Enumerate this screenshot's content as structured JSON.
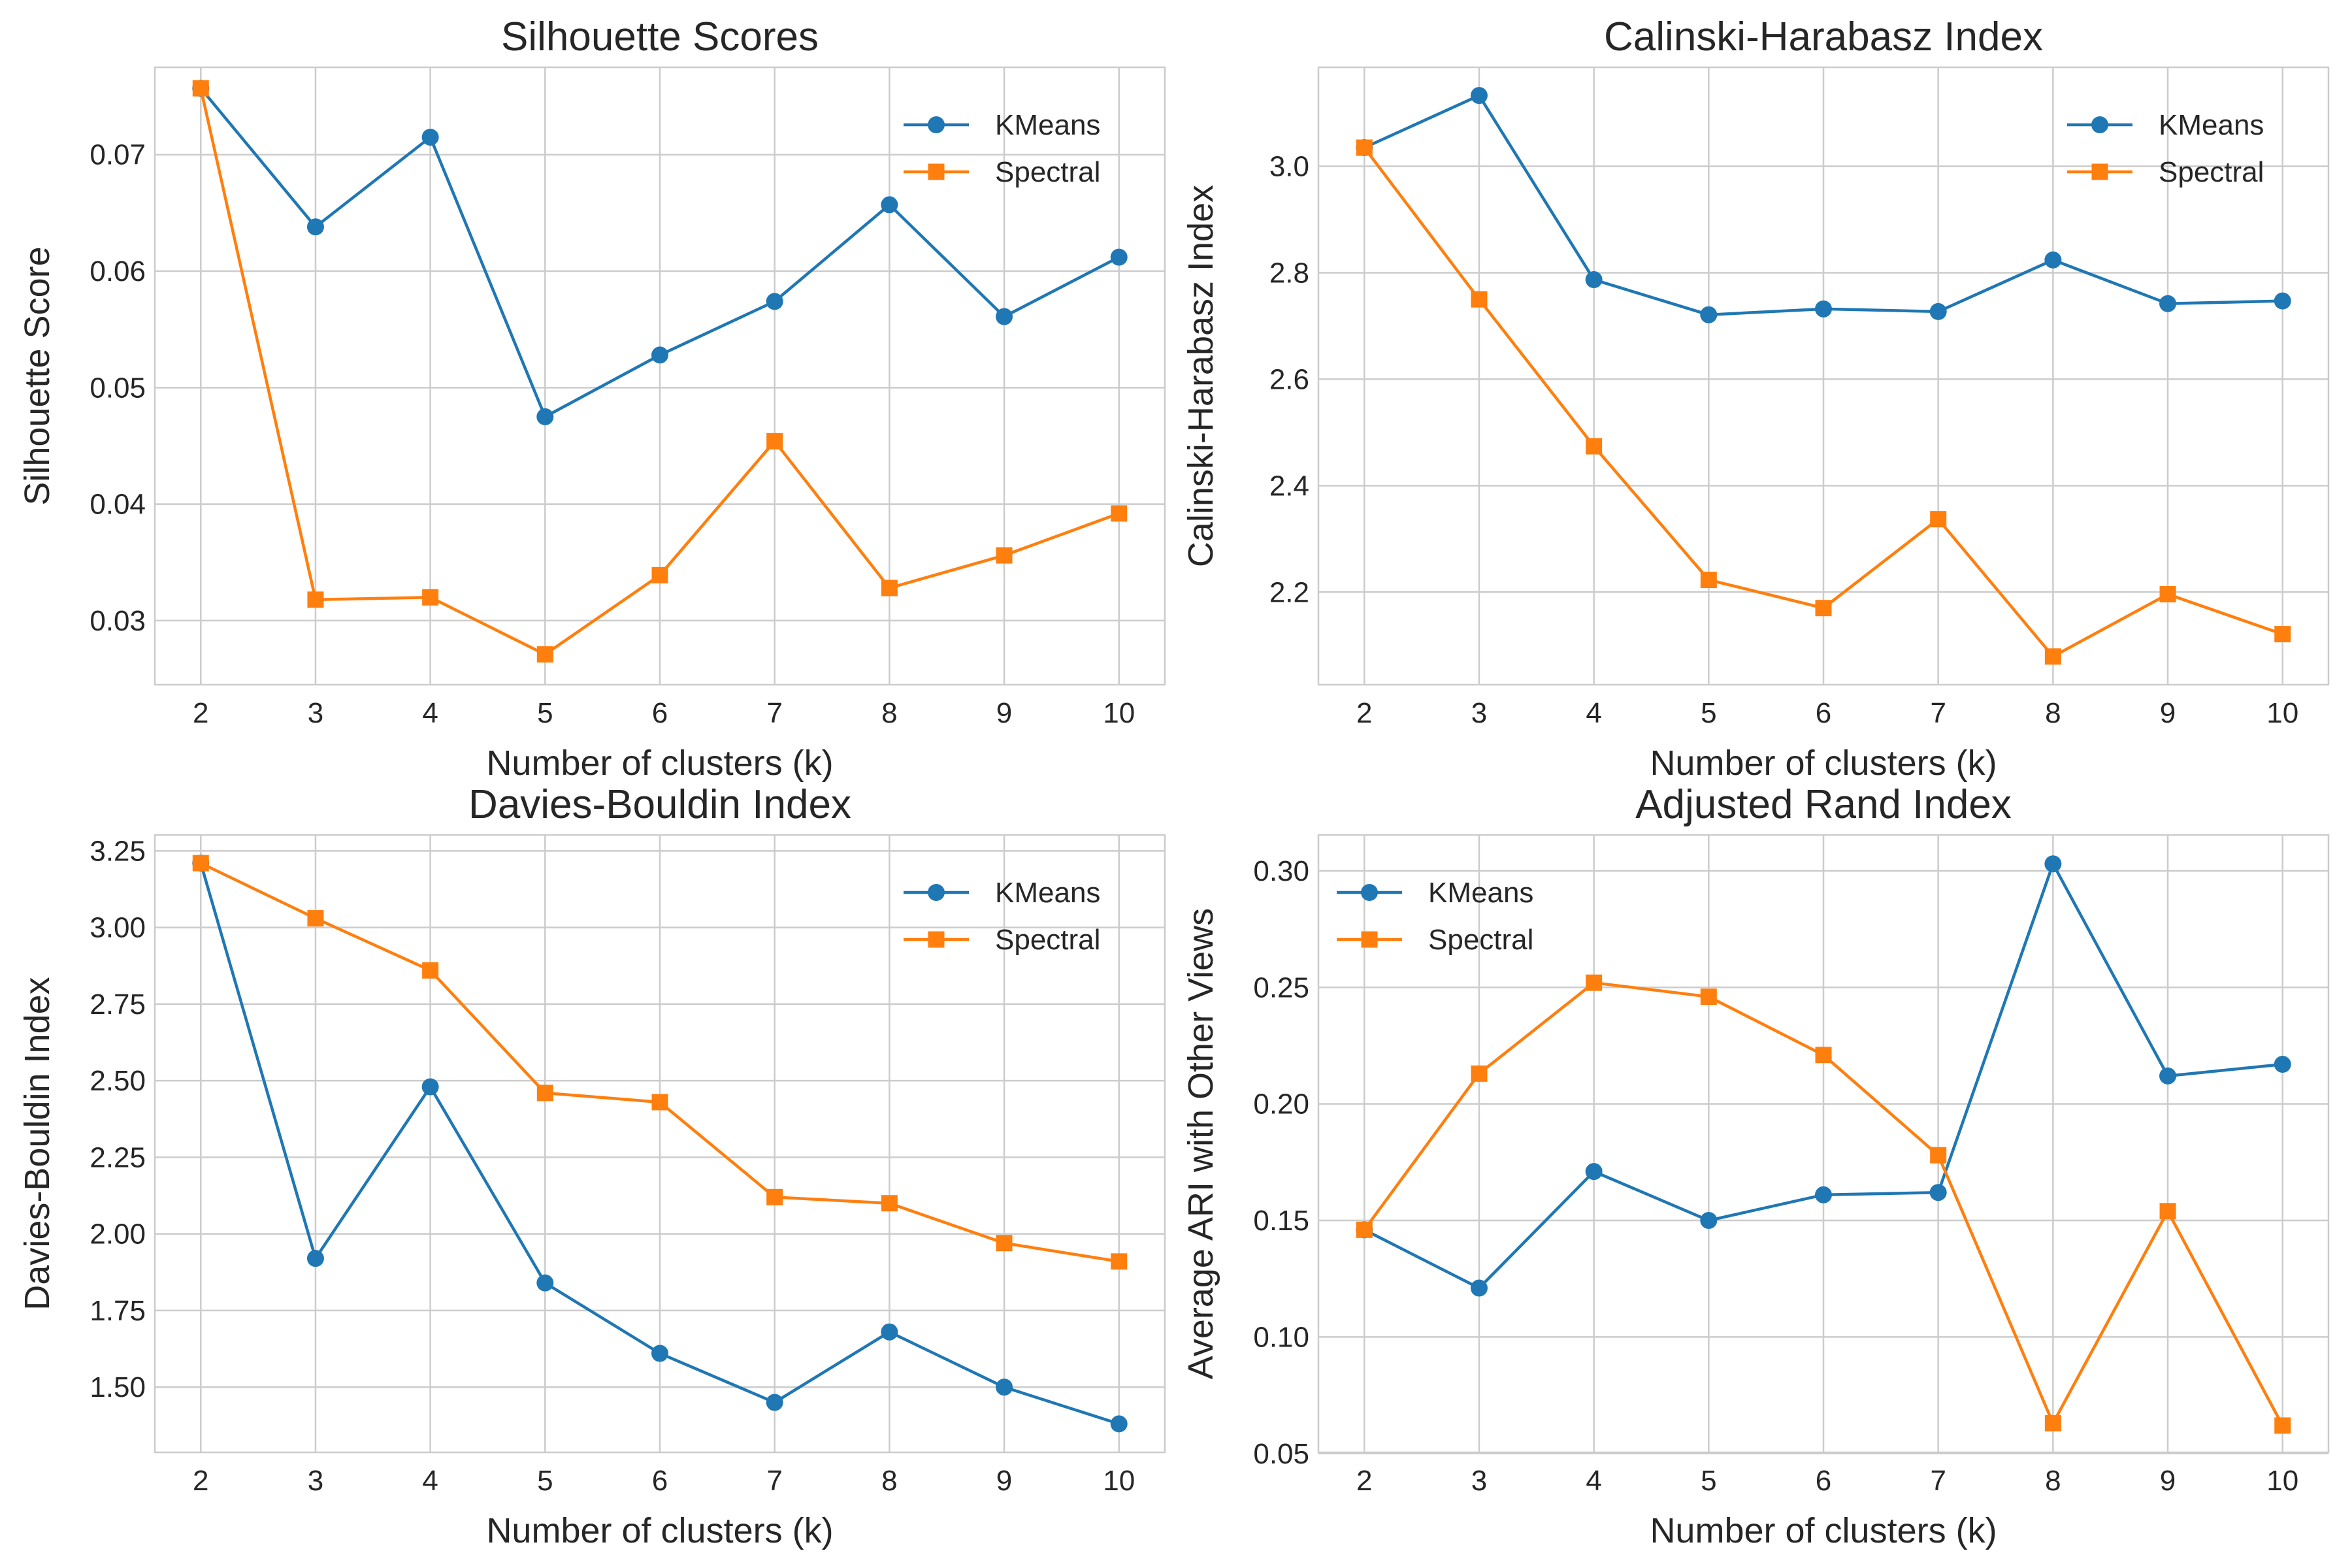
{
  "chart_data": [
    {
      "type": "line",
      "title": "Silhouette Scores",
      "xlabel": "Number of clusters (k)",
      "ylabel": "Silhouette Score",
      "x": [
        2,
        3,
        4,
        5,
        6,
        7,
        8,
        9,
        10
      ],
      "xticks": [
        "2",
        "3",
        "4",
        "5",
        "6",
        "7",
        "8",
        "9",
        "10"
      ],
      "xlim": [
        1.6,
        10.4
      ],
      "ylim": [
        0.0245,
        0.0775
      ],
      "yticks": [
        0.03,
        0.04,
        0.05,
        0.06,
        0.07
      ],
      "ytick_labels": [
        "0.03",
        "0.04",
        "0.05",
        "0.06",
        "0.07"
      ],
      "legend_position": "upper right",
      "grid": true,
      "series": [
        {
          "name": "KMeans",
          "color": "#1f77b4",
          "marker": "circle",
          "values": [
            0.0757,
            0.0638,
            0.0715,
            0.0475,
            0.0528,
            0.0574,
            0.0657,
            0.0561,
            0.0612
          ]
        },
        {
          "name": "Spectral",
          "color": "#ff7f0e",
          "marker": "square",
          "values": [
            0.0757,
            0.0318,
            0.032,
            0.0271,
            0.0339,
            0.0454,
            0.0328,
            0.0356,
            0.0392
          ]
        }
      ]
    },
    {
      "type": "line",
      "title": "Calinski-Harabasz Index",
      "xlabel": "Number of clusters (k)",
      "ylabel": "Calinski-Harabasz Index",
      "x": [
        2,
        3,
        4,
        5,
        6,
        7,
        8,
        9,
        10
      ],
      "xticks": [
        "2",
        "3",
        "4",
        "5",
        "6",
        "7",
        "8",
        "9",
        "10"
      ],
      "xlim": [
        1.6,
        10.4
      ],
      "ylim": [
        2.026,
        3.186
      ],
      "yticks": [
        2.2,
        2.4,
        2.6,
        2.8,
        3.0
      ],
      "ytick_labels": [
        "2.2",
        "2.4",
        "2.6",
        "2.8",
        "3.0"
      ],
      "legend_position": "upper right",
      "grid": true,
      "series": [
        {
          "name": "KMeans",
          "color": "#1f77b4",
          "marker": "circle",
          "values": [
            3.035,
            3.133,
            2.787,
            2.721,
            2.732,
            2.727,
            2.824,
            2.742,
            2.747
          ]
        },
        {
          "name": "Spectral",
          "color": "#ff7f0e",
          "marker": "square",
          "values": [
            3.035,
            2.75,
            2.474,
            2.223,
            2.17,
            2.337,
            2.079,
            2.196,
            2.121
          ]
        }
      ]
    },
    {
      "type": "line",
      "title": "Davies-Bouldin Index",
      "xlabel": "Number of clusters (k)",
      "ylabel": "Davies-Bouldin Index",
      "x": [
        2,
        3,
        4,
        5,
        6,
        7,
        8,
        9,
        10
      ],
      "xticks": [
        "2",
        "3",
        "4",
        "5",
        "6",
        "7",
        "8",
        "9",
        "10"
      ],
      "xlim": [
        1.6,
        10.4
      ],
      "ylim": [
        1.287,
        3.302
      ],
      "yticks": [
        1.5,
        1.75,
        2.0,
        2.25,
        2.5,
        2.75,
        3.0,
        3.25
      ],
      "ytick_labels": [
        "1.50",
        "1.75",
        "2.00",
        "2.25",
        "2.50",
        "2.75",
        "3.00",
        "3.25"
      ],
      "legend_position": "upper right",
      "grid": true,
      "series": [
        {
          "name": "KMeans",
          "color": "#1f77b4",
          "marker": "circle",
          "values": [
            3.21,
            1.92,
            2.48,
            1.84,
            1.61,
            1.45,
            1.68,
            1.5,
            1.38
          ]
        },
        {
          "name": "Spectral",
          "color": "#ff7f0e",
          "marker": "square",
          "values": [
            3.21,
            3.03,
            2.86,
            2.46,
            2.43,
            2.12,
            2.1,
            1.97,
            1.91
          ]
        }
      ]
    },
    {
      "type": "line",
      "title": "Adjusted Rand Index",
      "xlabel": "Number of clusters (k)",
      "ylabel": "Average ARI with Other Views",
      "x": [
        2,
        3,
        4,
        5,
        6,
        7,
        8,
        9,
        10
      ],
      "xticks": [
        "2",
        "3",
        "4",
        "5",
        "6",
        "7",
        "8",
        "9",
        "10"
      ],
      "xlim": [
        1.6,
        10.4
      ],
      "ylim": [
        0.0505,
        0.3154
      ],
      "yticks": [
        0.05,
        0.1,
        0.15,
        0.2,
        0.25,
        0.3
      ],
      "ytick_labels": [
        "0.05",
        "0.10",
        "0.15",
        "0.20",
        "0.25",
        "0.30"
      ],
      "legend_position": "upper left",
      "grid": true,
      "series": [
        {
          "name": "KMeans",
          "color": "#1f77b4",
          "marker": "circle",
          "values": [
            0.146,
            0.121,
            0.171,
            0.15,
            0.161,
            0.162,
            0.303,
            0.212,
            0.217
          ]
        },
        {
          "name": "Spectral",
          "color": "#ff7f0e",
          "marker": "square",
          "values": [
            0.146,
            0.213,
            0.252,
            0.246,
            0.221,
            0.178,
            0.063,
            0.154,
            0.062
          ]
        }
      ]
    }
  ]
}
